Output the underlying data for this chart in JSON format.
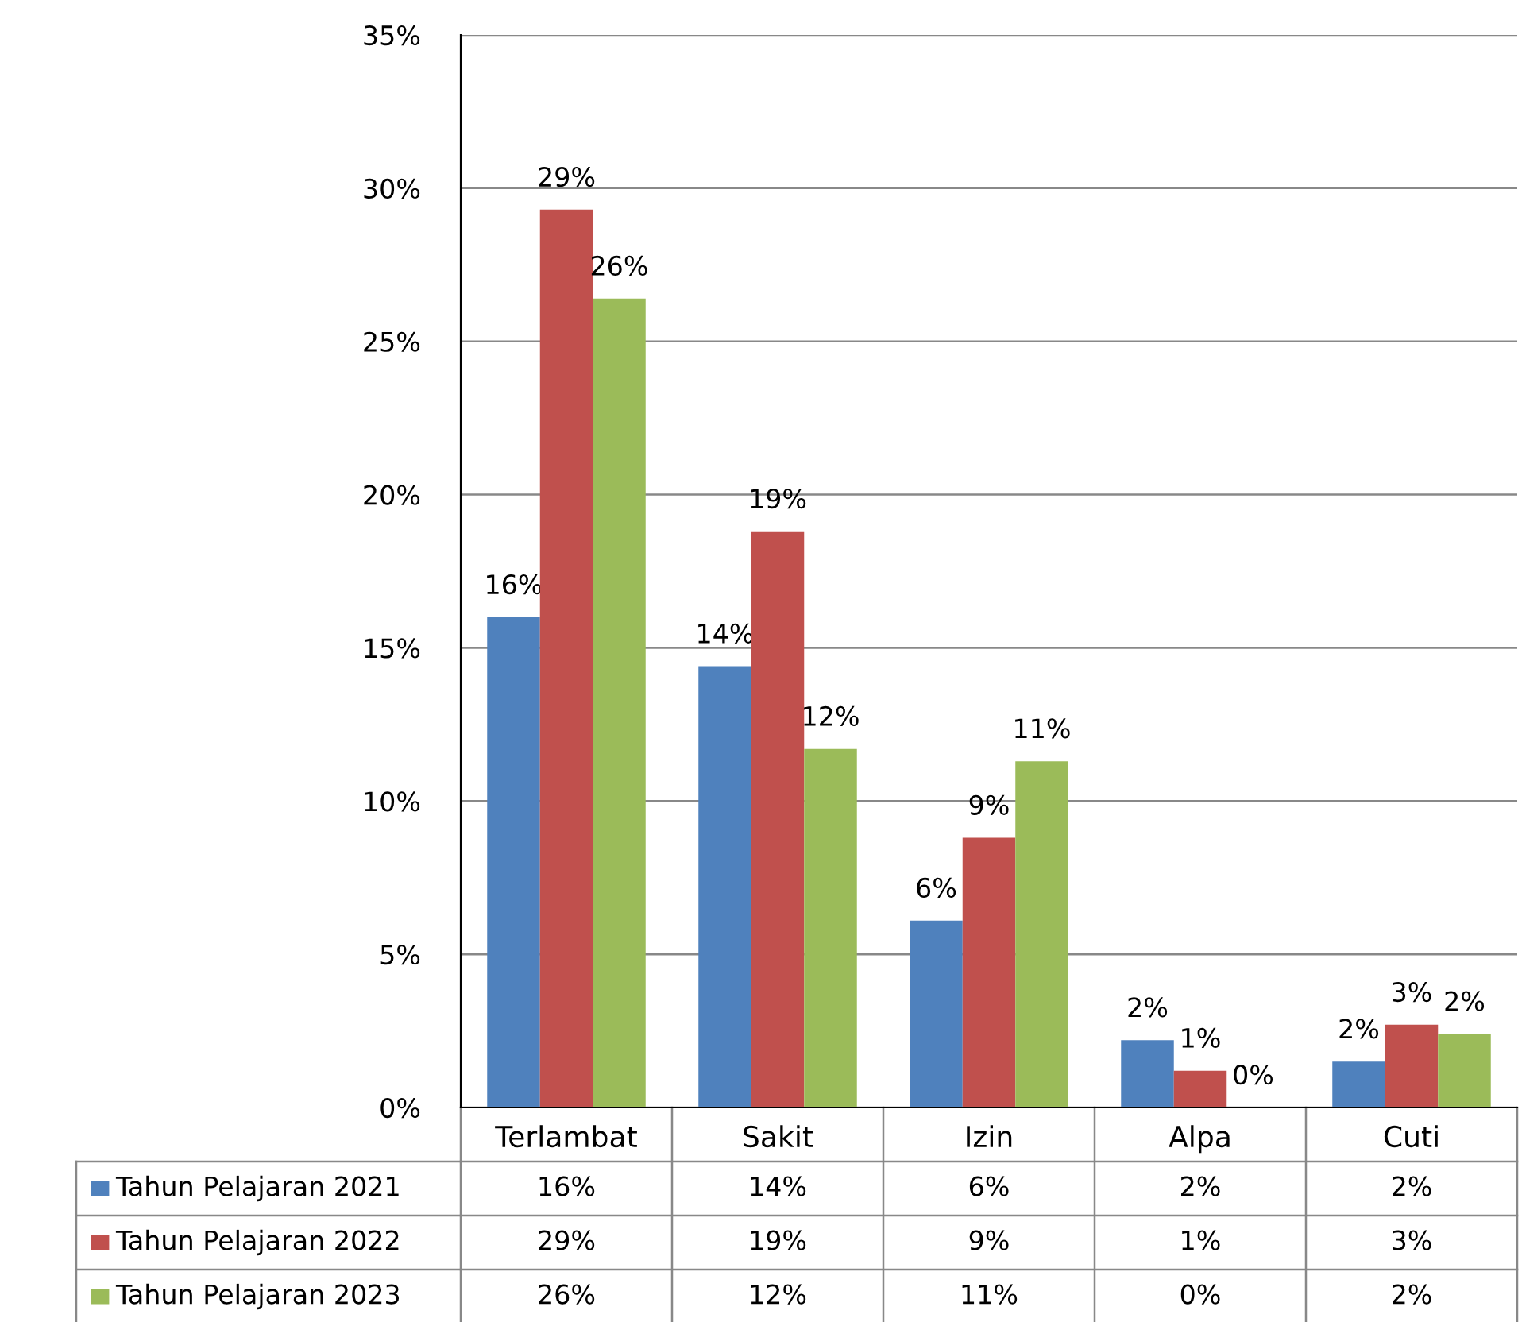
{
  "chart_data": {
    "type": "bar",
    "categories": [
      "Terlambat",
      "Sakit",
      "Izin",
      "Alpa",
      "Cuti"
    ],
    "series": [
      {
        "name": "Tahun Pelajaran 2021",
        "color": "#4f81bd",
        "values": [
          16.0,
          14.4,
          6.1,
          2.2,
          1.5
        ],
        "value_labels": [
          "16%",
          "14%",
          "6%",
          "2%",
          "2%"
        ]
      },
      {
        "name": "Tahun Pelajaran 2022",
        "color": "#c0504d",
        "values": [
          29.3,
          18.8,
          8.8,
          1.2,
          2.7
        ],
        "value_labels": [
          "29%",
          "19%",
          "9%",
          "1%",
          "3%"
        ]
      },
      {
        "name": "Tahun Pelajaran 2023",
        "color": "#9bbb59",
        "values": [
          26.4,
          11.7,
          11.3,
          0,
          2.4
        ],
        "value_labels": [
          "26%",
          "12%",
          "11%",
          "0%",
          "2%"
        ]
      }
    ],
    "ylim": [
      0,
      35
    ],
    "yticks": [
      {
        "value": 0,
        "label": "0%"
      },
      {
        "value": 5,
        "label": "5%"
      },
      {
        "value": 10,
        "label": "10%"
      },
      {
        "value": 15,
        "label": "15%"
      },
      {
        "value": 20,
        "label": "20%"
      },
      {
        "value": 25,
        "label": "25%"
      },
      {
        "value": 30,
        "label": "30%"
      },
      {
        "value": 35,
        "label": "35%"
      }
    ],
    "grid": "y",
    "legend": "bottom"
  }
}
